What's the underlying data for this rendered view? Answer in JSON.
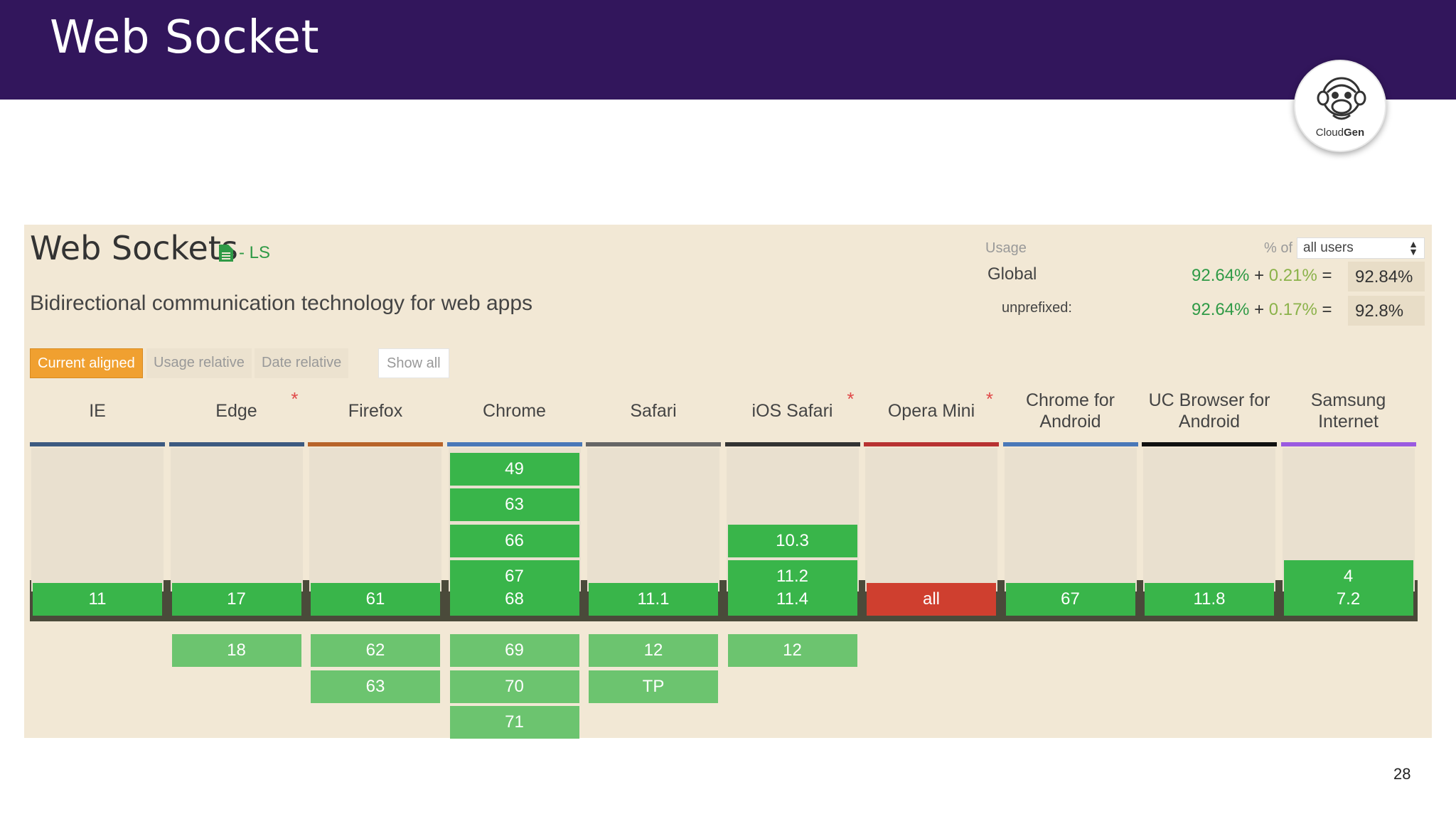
{
  "slide": {
    "title": "Web Socket",
    "page_number": "28"
  },
  "logo": {
    "icon": "monkey-icon",
    "text_light": "Cloud",
    "text_bold": "Gen"
  },
  "feature": {
    "title": "Web Sockets",
    "spec_icon": "document-icon",
    "spec_label": "- LS",
    "description": "Bidirectional communication technology for web apps"
  },
  "usage": {
    "label": "Usage",
    "pct_of": "% of",
    "users_select": "all users",
    "global": {
      "label": "Global",
      "supported": "92.64%",
      "plus": "+",
      "partial": "0.21%",
      "eq": "=",
      "total": "92.84%"
    },
    "unprefixed": {
      "label": "unprefixed:",
      "supported": "92.64%",
      "plus": "+",
      "partial": "0.17%",
      "eq": "=",
      "total": "92.8%"
    }
  },
  "tabs": {
    "current_aligned": "Current aligned",
    "usage_relative": "Usage relative",
    "date_relative": "Date relative",
    "show_all": "Show all"
  },
  "colors": {
    "header": "#32165c",
    "supported": "#39b54a",
    "future": "#6cc46f",
    "unsupported": "#cf3f2f",
    "accent": "#f0a030"
  },
  "browsers": [
    {
      "name": "IE",
      "star": false,
      "line_color": "#3d5a80",
      "past": [],
      "current": "11",
      "current_status": "supported",
      "future": []
    },
    {
      "name": "Edge",
      "star": true,
      "line_color": "#3d5a80",
      "past": [],
      "current": "17",
      "current_status": "supported",
      "future": [
        "18"
      ]
    },
    {
      "name": "Firefox",
      "star": false,
      "line_color": "#b8642a",
      "past": [],
      "current": "61",
      "current_status": "supported",
      "future": [
        "62",
        "63"
      ]
    },
    {
      "name": "Chrome",
      "star": false,
      "line_color": "#4a78b8",
      "past": [
        "49",
        "63",
        "66",
        "67"
      ],
      "current": "68",
      "current_status": "supported",
      "future": [
        "69",
        "70",
        "71"
      ]
    },
    {
      "name": "Safari",
      "star": false,
      "line_color": "#666666",
      "past": [],
      "current": "11.1",
      "current_status": "supported",
      "future": [
        "12",
        "TP"
      ]
    },
    {
      "name": "iOS Safari",
      "star": true,
      "line_color": "#333333",
      "past": [
        "10.3",
        "11.2"
      ],
      "current": "11.4",
      "current_status": "supported",
      "future": [
        "12"
      ]
    },
    {
      "name": "Opera Mini",
      "star": true,
      "line_color": "#b83232",
      "past": [],
      "current": "all",
      "current_status": "unsupported",
      "future": []
    },
    {
      "name": "Chrome for Android",
      "star": false,
      "line_color": "#4a78b8",
      "past": [],
      "current": "67",
      "current_status": "supported",
      "future": []
    },
    {
      "name": "UC Browser for Android",
      "star": false,
      "line_color": "#111111",
      "past": [],
      "current": "11.8",
      "current_status": "supported",
      "future": []
    },
    {
      "name": "Samsung Internet",
      "star": false,
      "line_color": "#9a5ae0",
      "past": [
        "4"
      ],
      "current": "7.2",
      "current_status": "supported",
      "future": []
    }
  ]
}
